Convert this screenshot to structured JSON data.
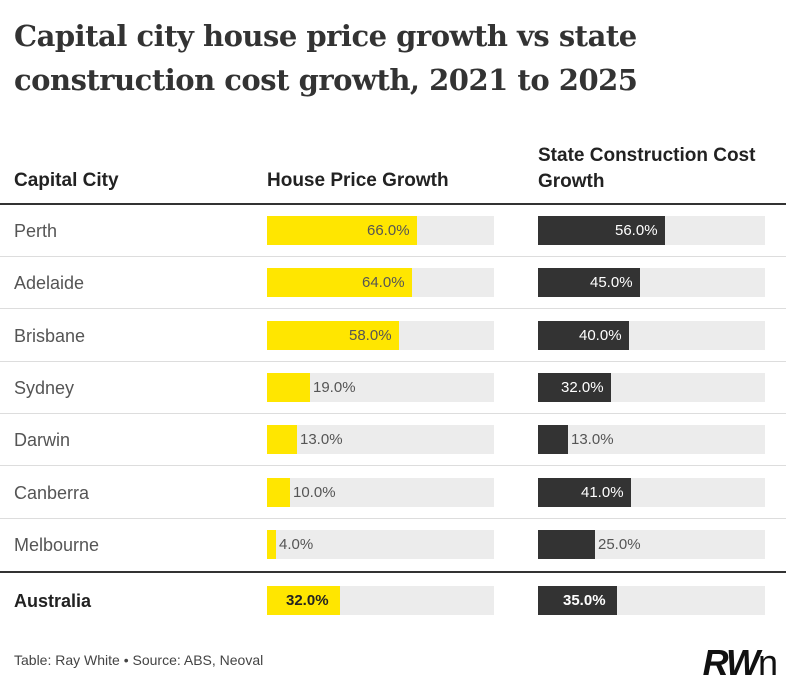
{
  "title": "Capital city house price growth vs state construction cost growth, 2021 to 2025",
  "headers": {
    "city": "Capital City",
    "house": "House Price Growth",
    "construction_line1": "State Construction Cost",
    "construction_line2": "Growth"
  },
  "chart_data": {
    "type": "table",
    "title": "Capital city house price growth vs state construction cost growth, 2021 to 2025",
    "unit": "%",
    "scale_max": 100,
    "columns": [
      "Capital City",
      "House Price Growth",
      "State Construction Cost Growth"
    ],
    "rows": [
      {
        "city": "Perth",
        "house": 66.0,
        "house_label": "66.0%",
        "construction": 56.0,
        "construction_label": "56.0%"
      },
      {
        "city": "Adelaide",
        "house": 64.0,
        "house_label": "64.0%",
        "construction": 45.0,
        "construction_label": "45.0%"
      },
      {
        "city": "Brisbane",
        "house": 58.0,
        "house_label": "58.0%",
        "construction": 40.0,
        "construction_label": "40.0%"
      },
      {
        "city": "Sydney",
        "house": 19.0,
        "house_label": "19.0%",
        "construction": 32.0,
        "construction_label": "32.0%"
      },
      {
        "city": "Darwin",
        "house": 13.0,
        "house_label": "13.0%",
        "construction": 13.0,
        "construction_label": "13.0%"
      },
      {
        "city": "Canberra",
        "house": 10.0,
        "house_label": "10.0%",
        "construction": 41.0,
        "construction_label": "41.0%"
      },
      {
        "city": "Melbourne",
        "house": 4.0,
        "house_label": "4.0%",
        "construction": 25.0,
        "construction_label": "25.0%"
      }
    ],
    "total": {
      "city": "Australia",
      "house": 32.0,
      "house_label": "32.0%",
      "construction": 35.0,
      "construction_label": "35.0%"
    }
  },
  "colors": {
    "house": "#ffe600",
    "construction": "#333333",
    "track": "#ececec"
  },
  "footer": "Table: Ray White • Source: ABS, Neoval",
  "logo": {
    "rw": "RW",
    "n": "n"
  }
}
